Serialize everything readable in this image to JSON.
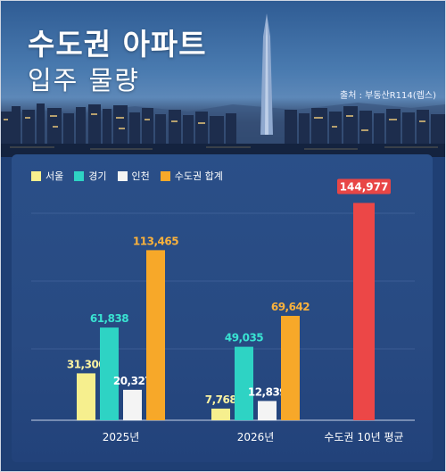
{
  "header": {
    "title_line1": "수도권 아파트",
    "title_line2": "입주 물량",
    "source": "출처 : 부동산R114(렙스)"
  },
  "colors": {
    "seoul": "#f6ef8e",
    "gyeonggi": "#2ed3c4",
    "incheon": "#f4f4f4",
    "total": "#f7a829",
    "average": "#ec4747",
    "label_seoul": "#fbf3a2",
    "label_gyeonggi": "#39e3d2",
    "label_incheon": "#ffffff",
    "label_total": "#f9b13c",
    "label_average_bg": "#e84646"
  },
  "chart_data": {
    "type": "bar",
    "categories": [
      "2025년",
      "2026년",
      "수도권 10년 평균"
    ],
    "series": [
      {
        "name": "서울",
        "values": [
          31300,
          7768,
          null
        ]
      },
      {
        "name": "경기",
        "values": [
          61838,
          49035,
          null
        ]
      },
      {
        "name": "인천",
        "values": [
          20327,
          12839,
          null
        ]
      },
      {
        "name": "수도권 합계",
        "values": [
          113465,
          69642,
          null
        ]
      }
    ],
    "average": {
      "category": "수도권 10년 평균",
      "value": 144977
    },
    "value_labels": {
      "2025년": [
        "31,300",
        "61,838",
        "20,327",
        "113,465"
      ],
      "2026년": [
        "7,768",
        "49,035",
        "12,839",
        "69,642"
      ],
      "수도권 10년 평균": "144,977"
    },
    "ylim": [
      0,
      150000
    ],
    "grid": true,
    "legend_position": "top-left"
  }
}
